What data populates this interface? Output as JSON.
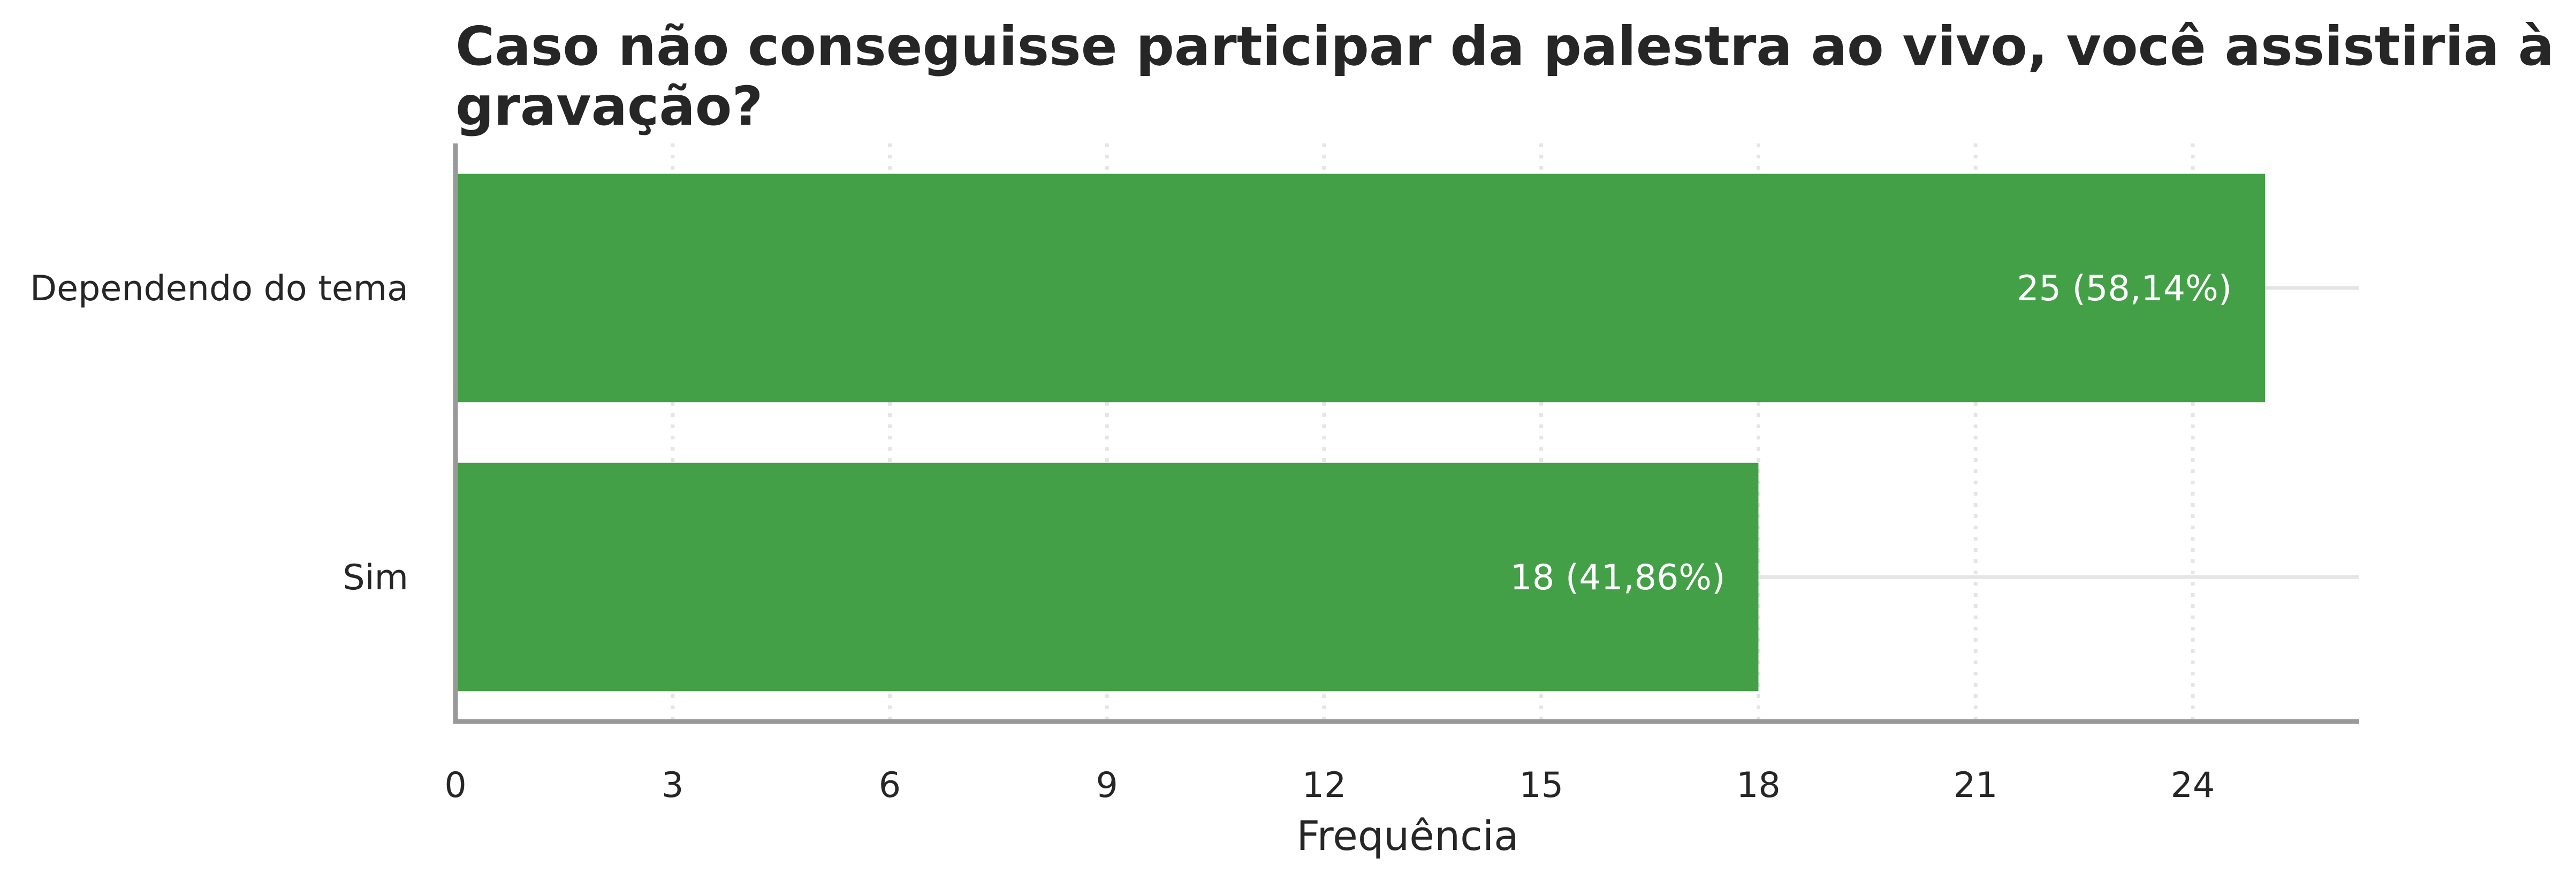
{
  "chart_data": {
    "type": "bar",
    "orientation": "horizontal",
    "title_lines": [
      "Caso não conseguisse participar da palestra ao vivo, você assistiria à",
      "gravação?"
    ],
    "xlabel": "Frequência",
    "ylabel": "",
    "categories": [
      "Dependendo do tema",
      "Sim"
    ],
    "values": [
      25,
      18
    ],
    "data_labels": [
      "25 (58,14%)",
      "18 (41,86%)"
    ],
    "x_ticks": [
      0,
      3,
      6,
      9,
      12,
      15,
      18,
      21,
      24
    ],
    "xlim": [
      0,
      26.3
    ],
    "grid": {
      "x": "dotted",
      "y": "solid"
    },
    "legend": "none",
    "colors": {
      "bar": "#43a047",
      "axis": "#999999",
      "grid": "#e5e5e5",
      "text": "#262626",
      "data_label": "#ffffff"
    }
  }
}
